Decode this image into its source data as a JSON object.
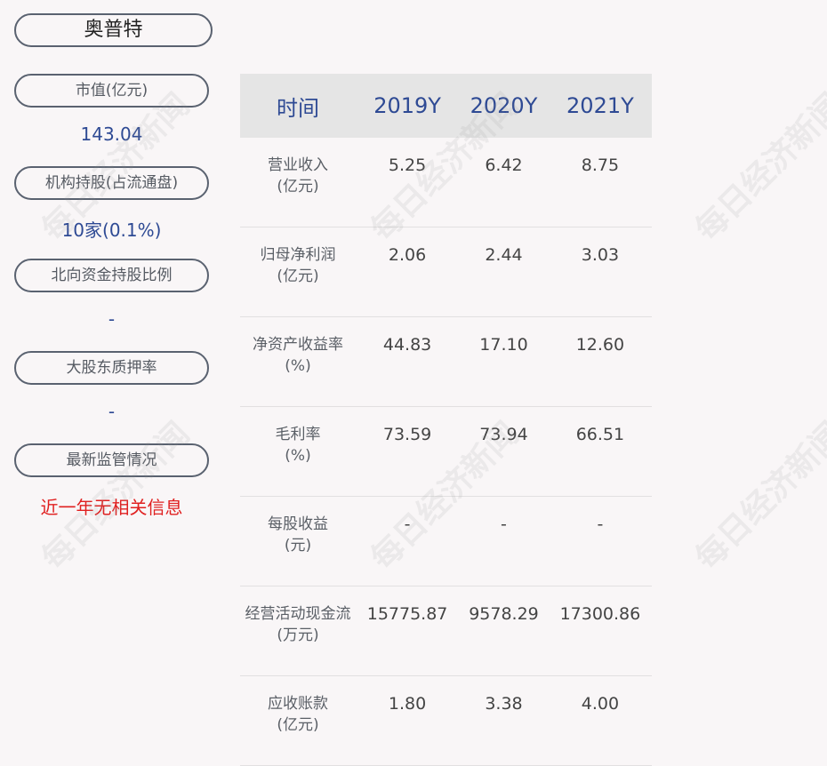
{
  "company": "奥普特",
  "left": [
    {
      "label": "市值(亿元)",
      "value": "143.04",
      "color": "#2e4a94"
    },
    {
      "label": "机构持股(占流通盘)",
      "value": "10家(0.1%)",
      "color": "#2e4a94"
    },
    {
      "label": "北向资金持股比例",
      "value": "-",
      "color": "#2e4a94"
    },
    {
      "label": "大股东质押率",
      "value": "-",
      "color": "#2e4a94"
    },
    {
      "label": "最新监管情况",
      "value": "近一年无相关信息",
      "color": "#e02020"
    }
  ],
  "table": {
    "headers": [
      "时间",
      "2019Y",
      "2020Y",
      "2021Y"
    ],
    "rows": [
      {
        "label": "营业收入",
        "unit": "(亿元)",
        "values": [
          "5.25",
          "6.42",
          "8.75"
        ]
      },
      {
        "label": "归母净利润",
        "unit": "(亿元)",
        "values": [
          "2.06",
          "2.44",
          "3.03"
        ]
      },
      {
        "label": "净资产收益率",
        "unit": "(%)",
        "values": [
          "44.83",
          "17.10",
          "12.60"
        ]
      },
      {
        "label": "毛利率",
        "unit": "(%)",
        "values": [
          "73.59",
          "73.94",
          "66.51"
        ]
      },
      {
        "label": "每股收益",
        "unit": "(元)",
        "values": [
          "-",
          "-",
          "-"
        ]
      },
      {
        "label": "经营活动现金流",
        "unit": "(万元)",
        "values": [
          "15775.87",
          "9578.29",
          "17300.86"
        ]
      },
      {
        "label": "应收账款",
        "unit": "(亿元)",
        "values": [
          "1.80",
          "3.38",
          "4.00"
        ]
      }
    ]
  },
  "watermark": "每日经济新闻"
}
